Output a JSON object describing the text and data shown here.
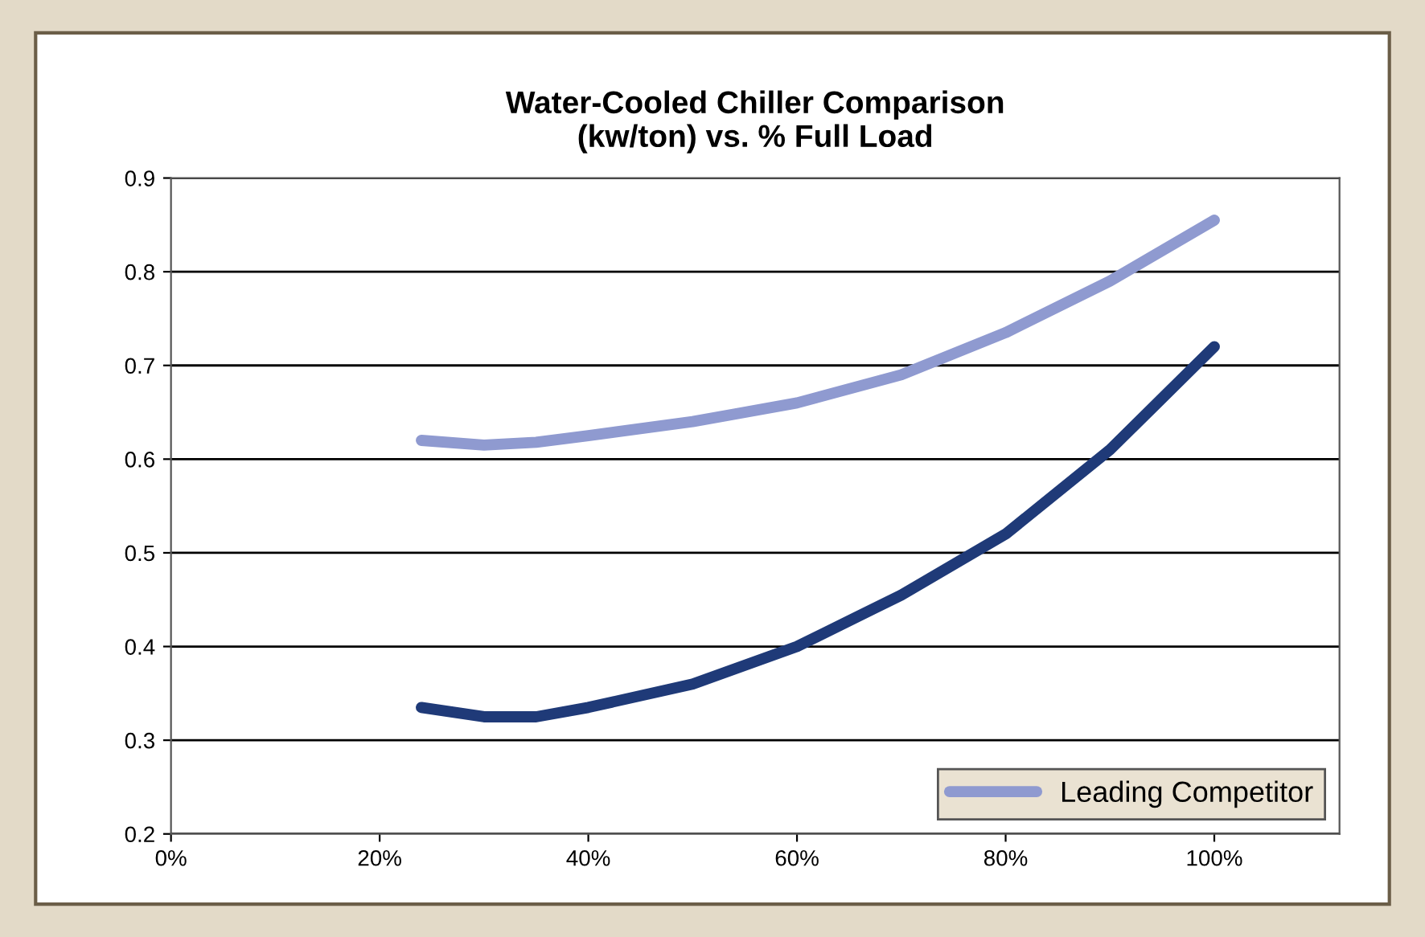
{
  "chart_data": {
    "type": "line",
    "title": "Water-Cooled Chiller Comparison\n(kw/ton) vs. % Full Load",
    "series": [
      {
        "name": "Leading Competitor",
        "color": "#8f9ad0",
        "x": [
          24,
          30,
          35,
          40,
          50,
          60,
          70,
          80,
          90,
          100
        ],
        "values": [
          0.62,
          0.615,
          0.618,
          0.625,
          0.64,
          0.66,
          0.69,
          0.735,
          0.79,
          0.855
        ]
      },
      {
        "color": "#1f3a78",
        "x": [
          24,
          30,
          35,
          40,
          50,
          60,
          70,
          80,
          90,
          100
        ],
        "values": [
          0.335,
          0.325,
          0.325,
          0.335,
          0.36,
          0.4,
          0.455,
          0.52,
          0.61,
          0.72
        ]
      }
    ],
    "xlim": [
      0,
      112
    ],
    "xticks": [
      {
        "value": 0,
        "label": "0%"
      },
      {
        "value": 20,
        "label": "20%"
      },
      {
        "value": 40,
        "label": "40%"
      },
      {
        "value": 60,
        "label": "60%"
      },
      {
        "value": 80,
        "label": "80%"
      },
      {
        "value": 100,
        "label": "100%"
      }
    ],
    "ylim": [
      0.2,
      0.9
    ],
    "yticks": [
      0.2,
      0.3,
      0.4,
      0.5,
      0.6,
      0.7,
      0.8,
      0.9
    ],
    "grid": "y",
    "legend": "bottom right",
    "marker": "none",
    "line_style": "solid"
  }
}
